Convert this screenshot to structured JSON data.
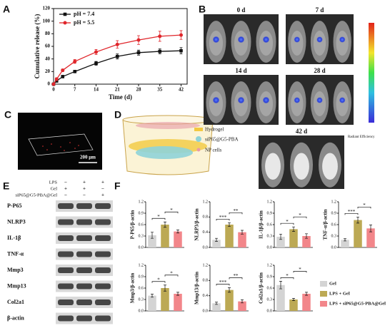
{
  "panel_labels": [
    "A",
    "B",
    "C",
    "D",
    "E",
    "F"
  ],
  "chart_data": [
    {
      "type": "line",
      "x": [
        0,
        1,
        3,
        7,
        14,
        21,
        28,
        35,
        42
      ],
      "xlim": [
        0,
        44
      ],
      "xticks": [
        0,
        7,
        14,
        21,
        28,
        35,
        42
      ],
      "ylim": [
        0,
        120
      ],
      "yticks": [
        0,
        20,
        40,
        60,
        80,
        100,
        120
      ],
      "x_label": "Time (d)",
      "y_label": "Cumulative release (%)",
      "legend": "upper left",
      "series": [
        {
          "name": "pH = 7.4",
          "color": "#111111",
          "marker": "square",
          "values": [
            0,
            5,
            12,
            20,
            33,
            44,
            50,
            52,
            53
          ],
          "errors": [
            0,
            1,
            2,
            2,
            3,
            4,
            4,
            4,
            5
          ]
        },
        {
          "name": "pH = 5.5",
          "color": "#e0262b",
          "marker": "circle",
          "values": [
            0,
            8,
            22,
            36,
            51,
            63,
            70,
            76,
            78
          ],
          "errors": [
            0,
            2,
            2,
            3,
            4,
            6,
            7,
            8,
            7
          ]
        }
      ]
    },
    {
      "type": "bar",
      "y_label": "P-P65/β-actin",
      "values": [
        0.32,
        0.6,
        0.42
      ],
      "errors": [
        0.08,
        0.07,
        0.04
      ],
      "ylim": [
        0,
        1.2
      ],
      "yticks": [
        {
          "value": 0,
          "label": "0.0"
        },
        {
          "value": 0.3,
          "label": "0.3"
        },
        {
          "value": 0.6,
          "label": "0.6"
        },
        {
          "value": 0.9,
          "label": "0.9"
        },
        {
          "value": 1.2,
          "label": "1.2"
        }
      ],
      "significance": [
        "*",
        "*"
      ]
    },
    {
      "type": "bar",
      "y_label": "NLRP3/β-actin",
      "values": [
        0.2,
        0.6,
        0.4
      ],
      "errors": [
        0.04,
        0.05,
        0.05
      ],
      "ylim": [
        0,
        1.2
      ],
      "yticks": [
        {
          "value": 0,
          "label": "0.0"
        },
        {
          "value": 0.4,
          "label": "0.4"
        },
        {
          "value": 0.8,
          "label": "0.8"
        },
        {
          "value": 1.2,
          "label": "1.2"
        }
      ],
      "significance": [
        "***",
        "**"
      ]
    },
    {
      "type": "bar",
      "y_label": "IL-1β/β-actin",
      "values": [
        0.28,
        0.48,
        0.3
      ],
      "errors": [
        0.07,
        0.06,
        0.06
      ],
      "ylim": [
        0,
        1.2
      ],
      "yticks": [
        {
          "value": 0,
          "label": "0.0"
        },
        {
          "value": 0.3,
          "label": "0.3"
        },
        {
          "value": 0.6,
          "label": "0.6"
        },
        {
          "value": 0.9,
          "label": "0.9"
        },
        {
          "value": 1.2,
          "label": "1.2"
        }
      ],
      "significance": [
        "*",
        "*"
      ]
    },
    {
      "type": "bar",
      "y_label": "TNF-α/β-actin",
      "values": [
        0.2,
        0.72,
        0.5
      ],
      "errors": [
        0.03,
        0.08,
        0.09
      ],
      "ylim": [
        0,
        1.2
      ],
      "yticks": [
        {
          "value": 0,
          "label": "0.0"
        },
        {
          "value": 0.3,
          "label": "0.3"
        },
        {
          "value": 0.6,
          "label": "0.6"
        },
        {
          "value": 0.9,
          "label": "0.9"
        },
        {
          "value": 1.2,
          "label": "1.2"
        }
      ],
      "significance": [
        "***",
        "*"
      ]
    },
    {
      "type": "bar",
      "y_label": "Mmp3/β-actin",
      "values": [
        0.4,
        0.6,
        0.45
      ],
      "errors": [
        0.04,
        0.08,
        0.04
      ],
      "ylim": [
        0,
        1.2
      ],
      "yticks": [
        {
          "value": 0,
          "label": "0.0"
        },
        {
          "value": 0.3,
          "label": "0.3"
        },
        {
          "value": 0.6,
          "label": "0.6"
        },
        {
          "value": 0.9,
          "label": "0.9"
        },
        {
          "value": 1.2,
          "label": "1.2"
        }
      ],
      "significance": [
        "*",
        "*"
      ]
    },
    {
      "type": "bar",
      "y_label": "Mmp13/β-actin",
      "values": [
        0.2,
        0.55,
        0.25
      ],
      "errors": [
        0.03,
        0.06,
        0.04
      ],
      "ylim": [
        0,
        1.2
      ],
      "yticks": [
        {
          "value": 0,
          "label": "0.0"
        },
        {
          "value": 0.4,
          "label": "0.4"
        },
        {
          "value": 0.8,
          "label": "0.8"
        },
        {
          "value": 1.2,
          "label": "1.2"
        }
      ],
      "significance": [
        "***",
        "**"
      ]
    },
    {
      "type": "bar",
      "y_label": "Col2a1/β-actin",
      "values": [
        0.68,
        0.3,
        0.45
      ],
      "errors": [
        0.1,
        0.03,
        0.04
      ],
      "ylim": [
        0,
        1.2
      ],
      "yticks": [
        {
          "value": 0,
          "label": "0.0"
        },
        {
          "value": 0.3,
          "label": "0.3"
        },
        {
          "value": 0.6,
          "label": "0.6"
        },
        {
          "value": 0.9,
          "label": "0.9"
        },
        {
          "value": 1.2,
          "label": "1.2"
        }
      ],
      "significance": [
        "*",
        "*"
      ]
    }
  ],
  "bar_legend": {
    "names": [
      "Gel",
      "LPS + Gel",
      "LPS + siP65@G5-PBA@Gel"
    ],
    "colors": [
      "#d4d4d4",
      "#bca954",
      "#f2868a"
    ]
  },
  "invivo": {
    "timepoints": [
      "0 d",
      "7 d",
      "14 d",
      "28 d",
      "42 d"
    ],
    "colorbar_title": "Radiant Efficiency"
  },
  "scale_bar": "200 μm",
  "schematic": [
    "Hydrogel",
    "siP65@G5-PBA",
    "NP cells"
  ],
  "blot": {
    "conditions": [
      {
        "name": "LPS",
        "signs": [
          "−",
          "+",
          "+"
        ]
      },
      {
        "name": "Gel",
        "signs": [
          "+",
          "+",
          "−"
        ]
      },
      {
        "name": "siP65@G5-PBA@Gel",
        "signs": [
          "−",
          "−",
          "+"
        ]
      }
    ],
    "proteins": [
      "P-P65",
      "NLRP3",
      "IL-1β",
      "TNF-α",
      "Mmp3",
      "Mmp13",
      "Col2a1",
      "β-actin"
    ]
  }
}
